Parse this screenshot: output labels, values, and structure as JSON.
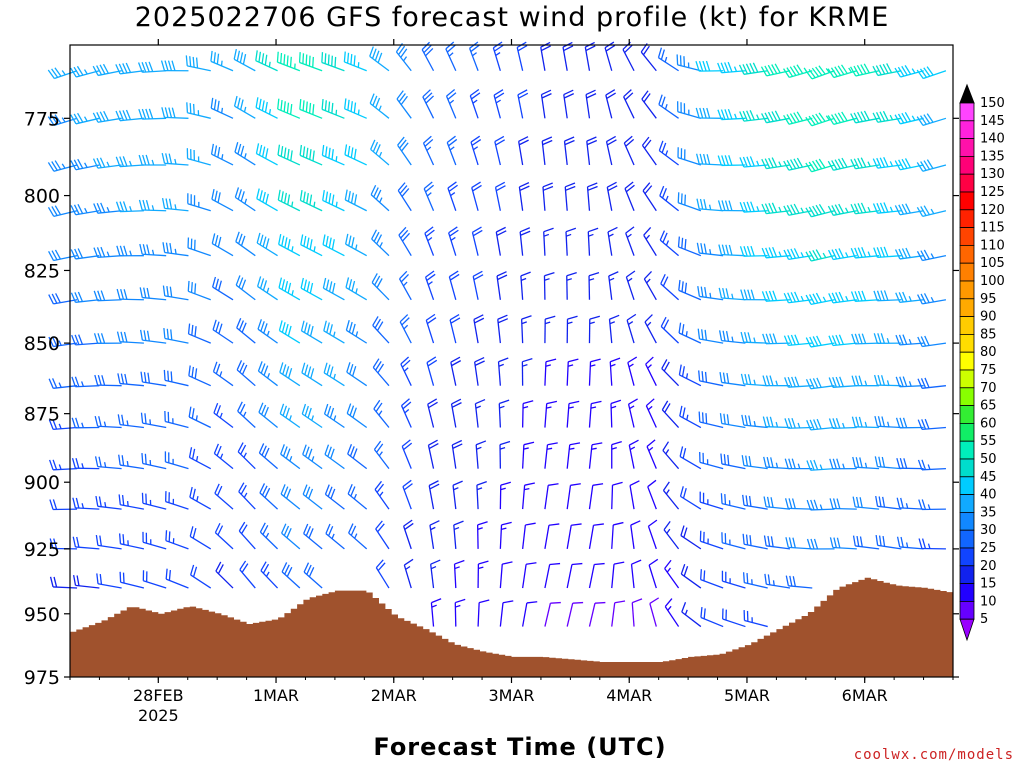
{
  "title": "2025022706 GFS forecast wind profile (kt) for KRME",
  "credit": "coolwx.com/models",
  "chart_data": {
    "type": "wind_barb_profile",
    "xlabel": "Forecast Time (UTC)",
    "ylabel": "",
    "y_scale": "log_pressure_inverted",
    "ylim": [
      975,
      752
    ],
    "y_ticks": [
      775,
      800,
      825,
      850,
      875,
      900,
      925,
      950,
      975
    ],
    "x_tick_labels": [
      {
        "label": "28FEB",
        "sub": "2025",
        "day": 1.0
      },
      {
        "label": "1MAR",
        "sub": "",
        "day": 2.0
      },
      {
        "label": "2MAR",
        "sub": "",
        "day": 3.0
      },
      {
        "label": "3MAR",
        "sub": "",
        "day": 4.0
      },
      {
        "label": "4MAR",
        "sub": "",
        "day": 5.0
      },
      {
        "label": "5MAR",
        "sub": "",
        "day": 6.0
      },
      {
        "label": "6MAR",
        "sub": "",
        "day": 7.0
      }
    ],
    "xlim": [
      0.25,
      7.75
    ],
    "surface_color": "#a0522d",
    "surface_pressure": [
      {
        "day": 0.25,
        "p": 957
      },
      {
        "day": 0.5,
        "p": 953
      },
      {
        "day": 0.75,
        "p": 947
      },
      {
        "day": 1.0,
        "p": 950
      },
      {
        "day": 1.25,
        "p": 947
      },
      {
        "day": 1.5,
        "p": 950
      },
      {
        "day": 1.75,
        "p": 954
      },
      {
        "day": 2.0,
        "p": 952
      },
      {
        "day": 2.25,
        "p": 944
      },
      {
        "day": 2.5,
        "p": 941
      },
      {
        "day": 2.75,
        "p": 941
      },
      {
        "day": 3.0,
        "p": 951
      },
      {
        "day": 3.25,
        "p": 956
      },
      {
        "day": 3.5,
        "p": 962
      },
      {
        "day": 3.75,
        "p": 965
      },
      {
        "day": 4.0,
        "p": 967
      },
      {
        "day": 4.25,
        "p": 967
      },
      {
        "day": 4.5,
        "p": 968
      },
      {
        "day": 4.75,
        "p": 969
      },
      {
        "day": 5.0,
        "p": 969
      },
      {
        "day": 5.25,
        "p": 969
      },
      {
        "day": 5.5,
        "p": 967
      },
      {
        "day": 5.75,
        "p": 966
      },
      {
        "day": 6.0,
        "p": 962
      },
      {
        "day": 6.25,
        "p": 956
      },
      {
        "day": 6.5,
        "p": 950
      },
      {
        "day": 6.75,
        "p": 940
      },
      {
        "day": 7.0,
        "p": 936
      },
      {
        "day": 7.25,
        "p": 939
      },
      {
        "day": 7.5,
        "p": 940
      },
      {
        "day": 7.75,
        "p": 942
      }
    ],
    "wind_levels": [
      760,
      775,
      790,
      805,
      820,
      835,
      850,
      865,
      880,
      895,
      910,
      925,
      940,
      955,
      970
    ],
    "wind_samples": [
      {
        "day": 0.25,
        "dir": 250,
        "speed": 35
      },
      {
        "day": 0.75,
        "dir": 260,
        "speed": 40
      },
      {
        "day": 1.25,
        "dir": 270,
        "speed": 40
      },
      {
        "day": 1.75,
        "dir": 300,
        "speed": 35
      },
      {
        "day": 2.25,
        "dir": 290,
        "speed": 55
      },
      {
        "day": 2.75,
        "dir": 290,
        "speed": 45
      },
      {
        "day": 3.25,
        "dir": 330,
        "speed": 30
      },
      {
        "day": 3.75,
        "dir": 340,
        "speed": 25
      },
      {
        "day": 4.25,
        "dir": 350,
        "speed": 20
      },
      {
        "day": 4.75,
        "dir": 350,
        "speed": 20
      },
      {
        "day": 5.25,
        "dir": 320,
        "speed": 20
      },
      {
        "day": 5.75,
        "dir": 270,
        "speed": 40
      },
      {
        "day": 6.25,
        "dir": 260,
        "speed": 50
      },
      {
        "day": 6.75,
        "dir": 250,
        "speed": 55
      },
      {
        "day": 7.25,
        "dir": 260,
        "speed": 50
      },
      {
        "day": 7.75,
        "dir": 250,
        "speed": 40
      }
    ],
    "colorbar": {
      "labels": [
        150,
        145,
        140,
        135,
        130,
        125,
        120,
        115,
        110,
        105,
        100,
        95,
        90,
        85,
        80,
        75,
        70,
        65,
        60,
        55,
        50,
        45,
        40,
        35,
        30,
        25,
        20,
        15,
        10,
        5
      ],
      "colors": [
        "#ff44ff",
        "#ff22dd",
        "#ff11aa",
        "#ff0077",
        "#ff0044",
        "#ff0000",
        "#ff2200",
        "#ff4400",
        "#ff6600",
        "#ff8000",
        "#ff9900",
        "#ffaa00",
        "#ffcc00",
        "#ffdd00",
        "#ffff00",
        "#ccff00",
        "#88ff00",
        "#33ee33",
        "#11ee66",
        "#00eebb",
        "#00ddcc",
        "#00ccff",
        "#11aaff",
        "#1188ff",
        "#1166ff",
        "#1144ff",
        "#1122ee",
        "#2200ff",
        "#6600ff",
        "#9900ff"
      ]
    }
  }
}
